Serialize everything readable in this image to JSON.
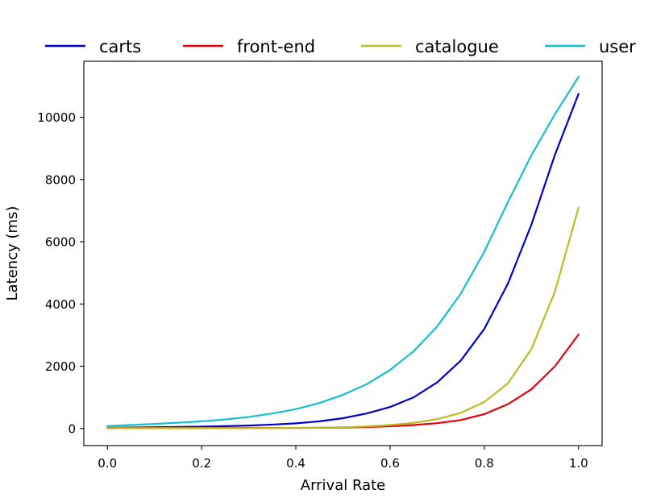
{
  "chart_data": {
    "type": "line",
    "title": "",
    "xlabel": "Arrival Rate",
    "ylabel": "Latency (ms)",
    "xlim": [
      -0.05,
      1.05
    ],
    "ylim": [
      -550,
      11800
    ],
    "xticks": [
      0.0,
      0.2,
      0.4,
      0.6,
      0.8,
      1.0
    ],
    "xtick_labels": [
      "0.0",
      "0.2",
      "0.4",
      "0.6",
      "0.8",
      "1.0"
    ],
    "yticks": [
      0,
      2000,
      4000,
      6000,
      8000,
      10000
    ],
    "ytick_labels": [
      "0",
      "2000",
      "4000",
      "6000",
      "8000",
      "10000"
    ],
    "grid": false,
    "legend_position": "top, above plot, single row",
    "x": [
      0.0,
      0.05,
      0.1,
      0.15,
      0.2,
      0.25,
      0.3,
      0.35,
      0.4,
      0.45,
      0.5,
      0.55,
      0.6,
      0.65,
      0.7,
      0.75,
      0.8,
      0.85,
      0.9,
      0.95,
      1.0
    ],
    "series": [
      {
        "name": "carts",
        "color": "#0000cc",
        "values": [
          20,
          30,
          40,
          50,
          60,
          75,
          95,
          125,
          165,
          230,
          330,
          480,
          690,
          1000,
          1480,
          2180,
          3200,
          4650,
          6550,
          8800,
          10750
        ]
      },
      {
        "name": "front-end",
        "color": "#e8000b",
        "values": [
          15,
          15,
          15,
          15,
          15,
          15,
          16,
          17,
          18,
          22,
          30,
          45,
          70,
          110,
          170,
          270,
          460,
          780,
          1260,
          2000,
          3020
        ]
      },
      {
        "name": "catalogue",
        "color": "#bcbd22",
        "values": [
          10,
          10,
          10,
          10,
          10,
          10,
          12,
          14,
          18,
          25,
          40,
          65,
          110,
          180,
          300,
          500,
          850,
          1450,
          2550,
          4400,
          7100
        ]
      },
      {
        "name": "user",
        "color": "#17becf",
        "values": [
          80,
          110,
          145,
          185,
          230,
          290,
          370,
          480,
          620,
          820,
          1080,
          1420,
          1880,
          2480,
          3280,
          4330,
          5680,
          7270,
          8780,
          10100,
          11300
        ]
      }
    ]
  }
}
